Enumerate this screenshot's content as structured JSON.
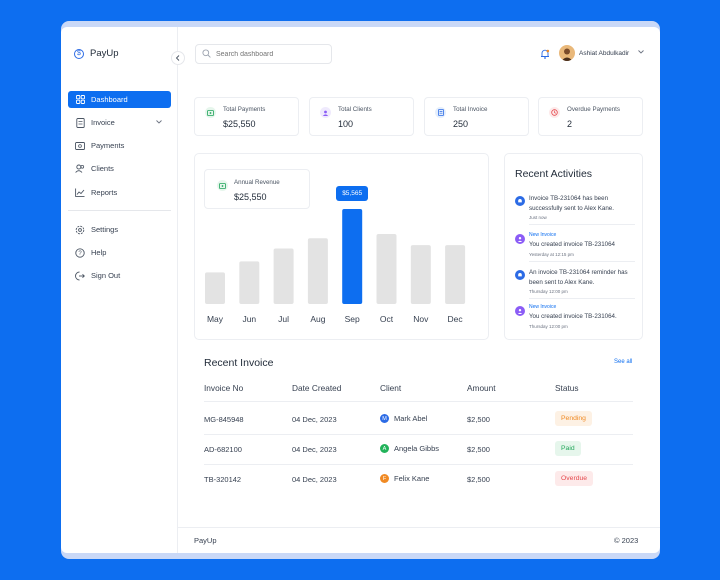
{
  "app": {
    "name": "PayUp"
  },
  "sidebar": {
    "items": [
      {
        "label": "Dashboard",
        "icon": "grid-icon"
      },
      {
        "label": "Invoice",
        "icon": "document-icon"
      },
      {
        "label": "Payments",
        "icon": "wallet-icon"
      },
      {
        "label": "Clients",
        "icon": "users-icon"
      },
      {
        "label": "Reports",
        "icon": "chart-icon"
      },
      {
        "label": "Settings",
        "icon": "gear-icon"
      },
      {
        "label": "Help",
        "icon": "help-icon"
      },
      {
        "label": "Sign Out",
        "icon": "sign-out-icon"
      }
    ]
  },
  "header": {
    "search_placeholder": "Search dashboard",
    "user_name": "Ashiat Abdulkadir"
  },
  "stats": [
    {
      "label": "Total Payments",
      "value": "$25,550",
      "icon": "wallet-icon",
      "color": "#1fa35a",
      "bg": "#e6f6ec"
    },
    {
      "label": "Total Clients",
      "value": "100",
      "icon": "users-icon",
      "color": "#8b5cf6",
      "bg": "#efeafd"
    },
    {
      "label": "Total Invoice",
      "value": "250",
      "icon": "document-icon",
      "color": "#2c6be5",
      "bg": "#e4eefc"
    },
    {
      "label": "Overdue Payments",
      "value": "2",
      "icon": "clock-icon",
      "color": "#e5484d",
      "bg": "#fdeaea"
    }
  ],
  "revenue": {
    "label": "Annual Revenue",
    "value": "$25,550"
  },
  "chart_data": {
    "type": "bar",
    "categories": [
      "May",
      "Jun",
      "Jul",
      "Aug",
      "Sep",
      "Oct",
      "Nov",
      "Dec"
    ],
    "values": [
      1850,
      2500,
      3250,
      3850,
      5565,
      4100,
      3450,
      3450
    ],
    "highlight_index": 4,
    "highlight_label": "$5,565",
    "colors": {
      "bar": "#e3e3e3",
      "highlight": "#0d6ef0"
    }
  },
  "activities": {
    "title": "Recent Activities",
    "items": [
      {
        "tag": "",
        "text": "Invoice TB-231064 has been successfully sent to Alex Kane.",
        "time": "Just now",
        "icon": "bell-icon",
        "color": "#2c6be5"
      },
      {
        "tag": "New Invoice",
        "text": "You created invoice TB-231064",
        "time": "Yesterday at 12:15 pm",
        "icon": "avatar-icon",
        "color": "#8b5cf6"
      },
      {
        "tag": "",
        "text": "An invoice TB-231064 reminder has been sent to Alex Kane.",
        "time": "Thursday 12:00 pm",
        "icon": "bell-icon",
        "color": "#2c6be5"
      },
      {
        "tag": "New Invoice",
        "text": "You created invoice TB-231064.",
        "time": "Thursday 12:00 pm",
        "icon": "avatar-icon",
        "color": "#8b5cf6"
      }
    ]
  },
  "invoices": {
    "title": "Recent Invoice",
    "see_all": "See all",
    "columns": [
      "Invoice No",
      "Date Created",
      "Client",
      "Amount",
      "Status"
    ],
    "rows": [
      {
        "id": "MG-845948",
        "date": "04 Dec, 2023",
        "client": "Mark Abel",
        "initial": "M",
        "dot": "#2c6be5",
        "amount": "$2,500",
        "status": "Pending",
        "status_fg": "#f08a24",
        "status_bg": "#fdf1e4"
      },
      {
        "id": "AD-682100",
        "date": "04 Dec, 2023",
        "client": "Angela Gibbs",
        "initial": "A",
        "dot": "#22b35a",
        "amount": "$2,500",
        "status": "Paid",
        "status_fg": "#22a65a",
        "status_bg": "#e6f6ec"
      },
      {
        "id": "TB-320142",
        "date": "04 Dec, 2023",
        "client": "Felix Kane",
        "initial": "F",
        "dot": "#f08a24",
        "amount": "$2,500",
        "status": "Overdue",
        "status_fg": "#e5484d",
        "status_bg": "#fdeaea"
      }
    ]
  },
  "footer": {
    "left": "PayUp",
    "right": "© 2023"
  }
}
